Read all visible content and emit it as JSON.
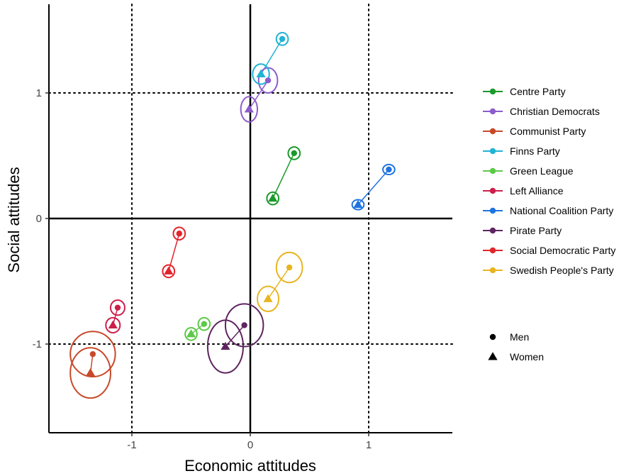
{
  "chart_data": {
    "type": "scatter",
    "xlabel": "Economic attitudes",
    "ylabel": "Social attitudes",
    "xlim": [
      -1.72,
      1.72
    ],
    "ylim": [
      -1.72,
      1.72
    ],
    "xticks": [
      -1,
      0,
      1
    ],
    "yticks": [
      -1,
      0,
      1
    ],
    "tick_labels_x": [
      "-1",
      "0",
      "1"
    ],
    "tick_labels_y": [
      "-1",
      "0",
      "1"
    ],
    "dotted_reference_lines": {
      "x": [
        -1,
        1
      ],
      "y": [
        -1,
        1
      ]
    },
    "solid_reference_lines": {
      "x": [
        0
      ],
      "y": [
        0
      ]
    },
    "legend_position": "right",
    "gender_legend": [
      {
        "label": "Men",
        "marker": "circle"
      },
      {
        "label": "Women",
        "marker": "triangle"
      }
    ],
    "series": [
      {
        "name": "Centre Party",
        "color": "#1a9a2a",
        "men": {
          "x": 0.37,
          "y": 0.52,
          "ex": 0.05,
          "ey": 0.05
        },
        "women": {
          "x": 0.19,
          "y": 0.16,
          "ex": 0.05,
          "ey": 0.05
        }
      },
      {
        "name": "Christian Democrats",
        "color": "#8c5ccc",
        "men": {
          "x": 0.15,
          "y": 1.1,
          "ex": 0.08,
          "ey": 0.1
        },
        "women": {
          "x": -0.01,
          "y": 0.87,
          "ex": 0.07,
          "ey": 0.1
        }
      },
      {
        "name": "Communist Party",
        "color": "#c8492a",
        "men": {
          "x": -1.33,
          "y": -1.08,
          "ex": 0.19,
          "ey": 0.18
        },
        "women": {
          "x": -1.35,
          "y": -1.23,
          "ex": 0.17,
          "ey": 0.2
        }
      },
      {
        "name": "Finns Party",
        "color": "#1fb4d4",
        "men": {
          "x": 0.27,
          "y": 1.43,
          "ex": 0.05,
          "ey": 0.05
        },
        "women": {
          "x": 0.09,
          "y": 1.15,
          "ex": 0.07,
          "ey": 0.08
        }
      },
      {
        "name": "Green League",
        "color": "#5dc948",
        "men": {
          "x": -0.39,
          "y": -0.84,
          "ex": 0.05,
          "ey": 0.05
        },
        "women": {
          "x": -0.5,
          "y": -0.92,
          "ex": 0.05,
          "ey": 0.05
        }
      },
      {
        "name": "Left Alliance",
        "color": "#cc1f4c",
        "men": {
          "x": -1.12,
          "y": -0.71,
          "ex": 0.06,
          "ey": 0.06
        },
        "women": {
          "x": -1.16,
          "y": -0.85,
          "ex": 0.06,
          "ey": 0.06
        }
      },
      {
        "name": "National Coalition Party",
        "color": "#1f73e0",
        "men": {
          "x": 1.17,
          "y": 0.39,
          "ex": 0.05,
          "ey": 0.04
        },
        "women": {
          "x": 0.91,
          "y": 0.11,
          "ex": 0.05,
          "ey": 0.04
        }
      },
      {
        "name": "Pirate Party",
        "color": "#5e2560",
        "men": {
          "x": -0.05,
          "y": -0.85,
          "ex": 0.16,
          "ey": 0.17
        },
        "women": {
          "x": -0.21,
          "y": -1.02,
          "ex": 0.15,
          "ey": 0.21
        }
      },
      {
        "name": "Social Democratic Party",
        "color": "#e3242b",
        "men": {
          "x": -0.6,
          "y": -0.12,
          "ex": 0.05,
          "ey": 0.05
        },
        "women": {
          "x": -0.69,
          "y": -0.42,
          "ex": 0.05,
          "ey": 0.05
        }
      },
      {
        "name": "Swedish People's Party",
        "color": "#e8b520",
        "men": {
          "x": 0.33,
          "y": -0.39,
          "ex": 0.11,
          "ey": 0.12
        },
        "women": {
          "x": 0.15,
          "y": -0.64,
          "ex": 0.09,
          "ey": 0.1
        }
      }
    ]
  }
}
